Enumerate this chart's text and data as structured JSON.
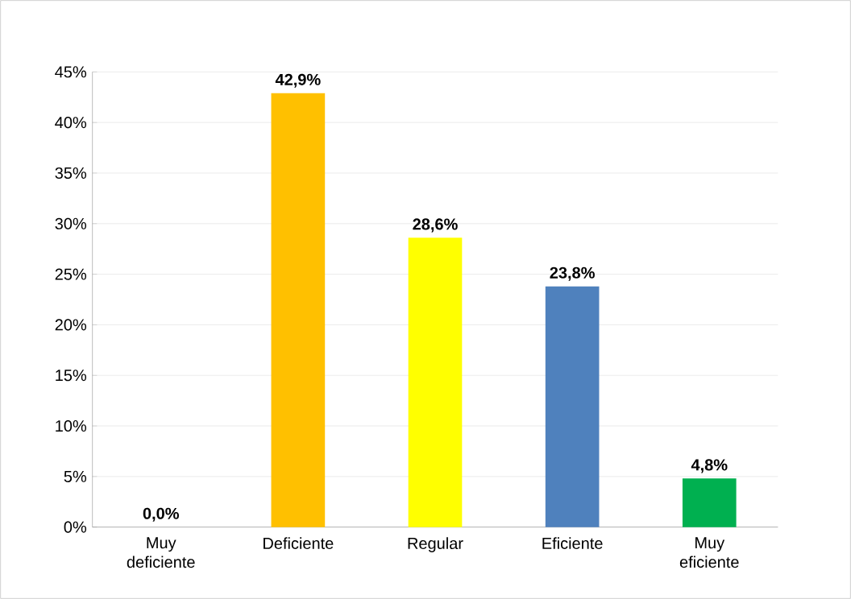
{
  "chart_data": {
    "type": "bar",
    "categories": [
      "Muy deficiente",
      "Deficiente",
      "Regular",
      "Eficiente",
      "Muy eficiente"
    ],
    "values": [
      0.0,
      42.9,
      28.6,
      23.8,
      4.8
    ],
    "colors": [
      "#c00000",
      "#ffc000",
      "#ffff00",
      "#4f81bd",
      "#00b050"
    ],
    "value_labels": [
      "0,0%",
      "42,9%",
      "28,6%",
      "23,8%",
      "4,8%"
    ],
    "ylim": [
      0,
      45
    ],
    "yticks": [
      {
        "value": 0,
        "label": "0%"
      },
      {
        "value": 5,
        "label": "5%"
      },
      {
        "value": 10,
        "label": "10%"
      },
      {
        "value": 15,
        "label": "15%"
      },
      {
        "value": 20,
        "label": "20%"
      },
      {
        "value": 25,
        "label": "25%"
      },
      {
        "value": 30,
        "label": "30%"
      },
      {
        "value": 35,
        "label": "35%"
      },
      {
        "value": 40,
        "label": "40%"
      },
      {
        "value": 45,
        "label": "45%"
      }
    ],
    "grid": "y"
  }
}
